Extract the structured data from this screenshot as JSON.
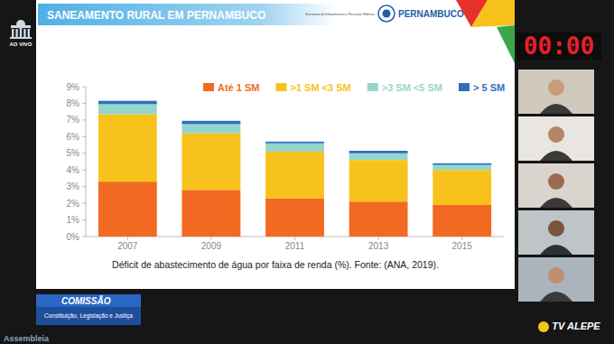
{
  "overlay": {
    "live_label": "AO VIVO",
    "timer": "00:00",
    "program": "COMISSÃO",
    "committee": "Constituição, Legislação e Justiça",
    "channel": "TV ALEPE",
    "footer": "Assembleia"
  },
  "slide": {
    "org": "Secretaria de Infraestrutura e Recursos Hídricos",
    "state": "PERNAMBUCO"
  },
  "chart_data": {
    "type": "bar",
    "stacked": true,
    "title": "SANEAMENTO RURAL EM PERNAMBUCO",
    "caption": "Déficit de abastecimento de água por faixa de renda (%). Fonte: (ANA, 2019).",
    "categories": [
      "2007",
      "2009",
      "2011",
      "2013",
      "2015"
    ],
    "series": [
      {
        "name": "Até 1 SM",
        "color": "#f26a21",
        "values": [
          3.3,
          2.8,
          2.3,
          2.1,
          1.9
        ]
      },
      {
        "name": ">1 SM <3 SM",
        "color": "#f8c21c",
        "values": [
          4.05,
          3.4,
          2.8,
          2.5,
          2.1
        ]
      },
      {
        "name": ">3 SM <5 SM",
        "color": "#95d6cc",
        "values": [
          0.6,
          0.55,
          0.5,
          0.4,
          0.3
        ]
      },
      {
        "name": "> 5 SM",
        "color": "#2f6fbe",
        "values": [
          0.2,
          0.2,
          0.1,
          0.15,
          0.1
        ]
      }
    ],
    "ylim": [
      0,
      9
    ],
    "yticks": [
      {
        "value": 0,
        "label": "0%"
      },
      {
        "value": 1,
        "label": "1%"
      },
      {
        "value": 2,
        "label": "2%"
      },
      {
        "value": 3,
        "label": "3%"
      },
      {
        "value": 4,
        "label": "4%"
      },
      {
        "value": 5,
        "label": "5%"
      },
      {
        "value": 6,
        "label": "6%"
      },
      {
        "value": 7,
        "label": "7%"
      },
      {
        "value": 8,
        "label": "8%"
      },
      {
        "value": 9,
        "label": "9%"
      }
    ],
    "grid": false,
    "legend": "top-right"
  }
}
